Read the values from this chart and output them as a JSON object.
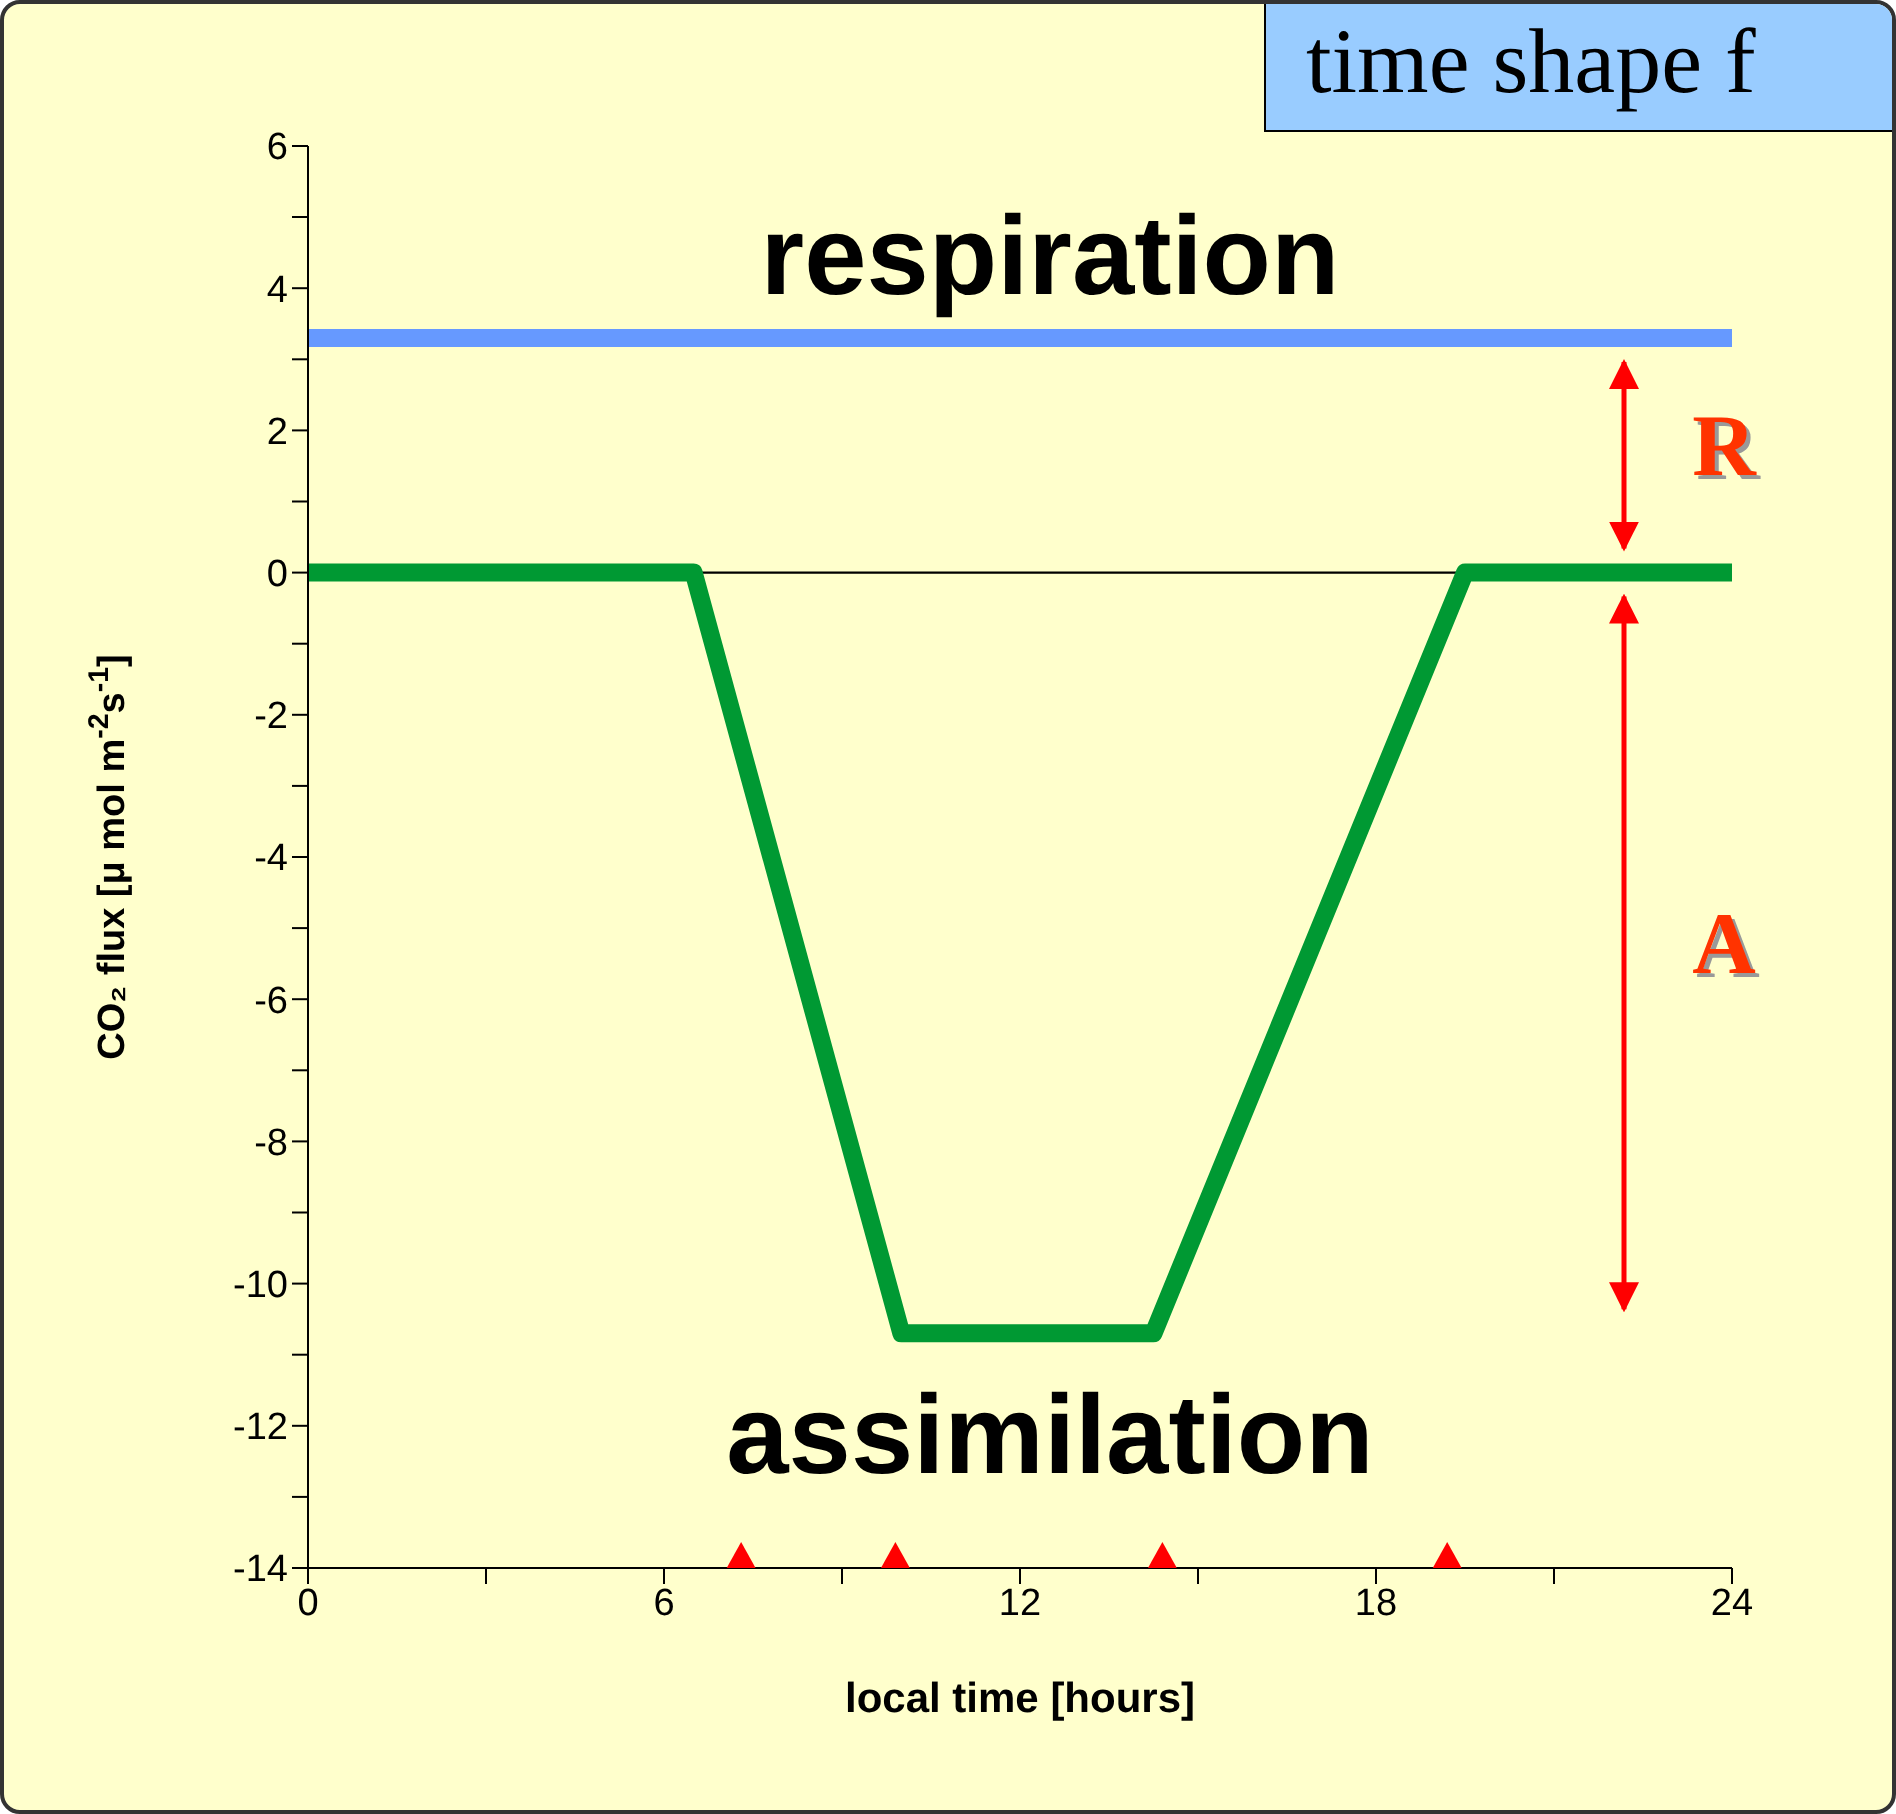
{
  "chart_data": {
    "type": "line",
    "title": "time shape f",
    "xlabel": "local time [hours]",
    "ylabel": "CO₂ flux [μ mol m$^{-2}$s$^{-1}$]",
    "xlim": [
      0,
      24
    ],
    "xticks": [
      0,
      {
        "value": 3,
        "label": null
      },
      6,
      {
        "value": 9,
        "label": null
      },
      12,
      {
        "value": 15,
        "label": null
      },
      18,
      {
        "value": 21,
        "label": null
      },
      24
    ],
    "ylim": [
      -14,
      6
    ],
    "yticks": [
      -14,
      {
        "value": -13,
        "label": null
      },
      -12,
      {
        "value": -11,
        "label": null
      },
      -10,
      {
        "value": -9,
        "label": null
      },
      -8,
      {
        "value": -7,
        "label": null
      },
      -6,
      {
        "value": -5,
        "label": null
      },
      -4,
      {
        "value": -3,
        "label": null
      },
      -2,
      {
        "value": -1,
        "label": null
      },
      0,
      {
        "value": 1,
        "label": null
      },
      2,
      {
        "value": 3,
        "label": null
      },
      4,
      {
        "value": 5,
        "label": null
      },
      6
    ],
    "series": [
      {
        "name": "respiration",
        "color": "#6699ff",
        "x": [
          0,
          24
        ],
        "values": [
          3.3,
          3.3
        ]
      },
      {
        "name": "assimilation",
        "color": "#009933",
        "x": [
          0,
          6.5,
          10,
          14.25,
          19.5,
          24
        ],
        "values": [
          0,
          0,
          -10.7,
          -10.7,
          0,
          0
        ]
      },
      {
        "type": "scatter",
        "marker": "triangle",
        "color": "#ff0000",
        "x": [
          7.3,
          9.9,
          14.4,
          19.2
        ],
        "values": [
          -14,
          -14,
          -14,
          -14
        ]
      }
    ],
    "ref_lines": [
      {
        "axis": "y",
        "value": 0,
        "color": "#000000"
      }
    ],
    "annotations": [
      "R",
      "A"
    ],
    "legend": false
  }
}
